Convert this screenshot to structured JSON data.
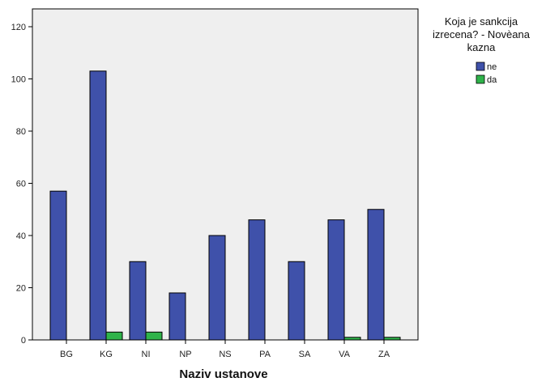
{
  "chart_data": {
    "type": "bar",
    "title": "",
    "xlabel": "Naziv ustanove",
    "ylabel": "",
    "categories": [
      "BG",
      "KG",
      "NI",
      "NP",
      "NS",
      "PA",
      "SA",
      "VA",
      "ZA"
    ],
    "series": [
      {
        "name": "ne",
        "color": "#3f51aa",
        "values": [
          57,
          103,
          30,
          18,
          40,
          46,
          30,
          46,
          50
        ]
      },
      {
        "name": "da",
        "color": "#2fb34a",
        "values": [
          0,
          3,
          3,
          0,
          0,
          0,
          0,
          1,
          1
        ]
      }
    ],
    "ylim": [
      0,
      120
    ],
    "yticks": [
      0,
      20,
      40,
      60,
      80,
      100,
      120
    ],
    "grid": false,
    "legend": {
      "placement": "top-right",
      "title_lines": [
        "Koja je sankcija",
        "izrecena? - Novèana",
        "kazna"
      ]
    },
    "plot_background": "#efefef"
  }
}
